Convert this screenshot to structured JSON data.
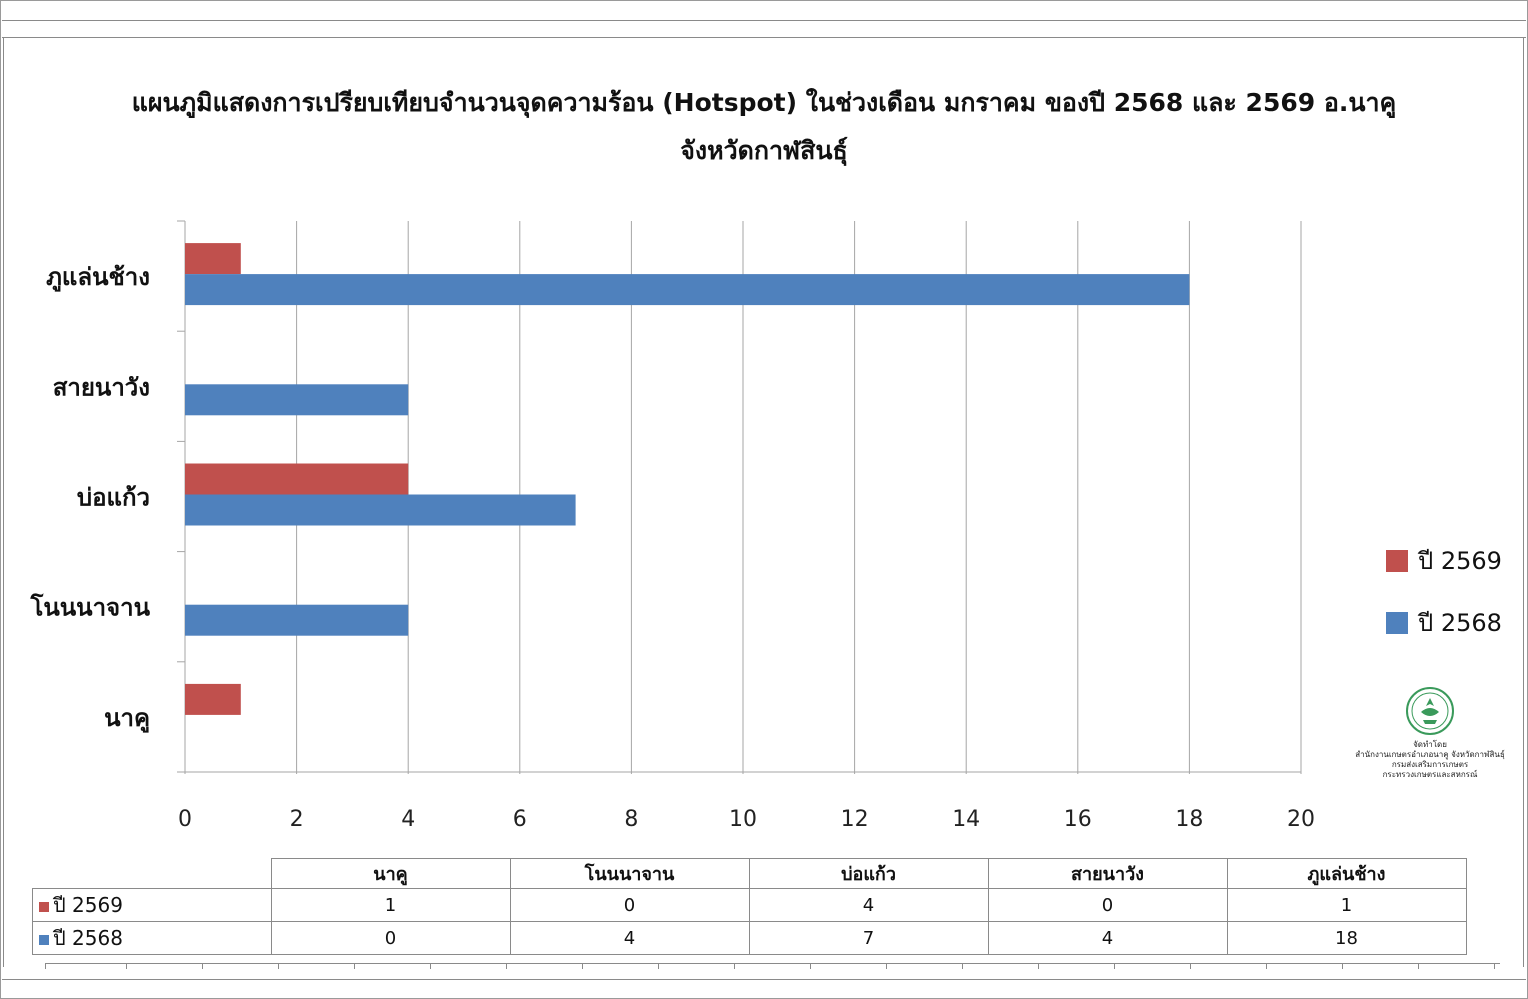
{
  "title_line1": "แผนภูมิแสดงการเปรียบเทียบจำนวนจุดความร้อน (Hotspot) ในช่วงเดือน มกราคม ของปี 2568 และ 2569 อ.นาคู",
  "title_line2": "จังหวัดกาฬสินธุ์",
  "colors": {
    "y2569": "#c0504d",
    "y2568": "#4f81bd",
    "grid": "#a6a6a6"
  },
  "chart_data": {
    "type": "bar",
    "orientation": "horizontal",
    "categories": [
      "นาคู",
      "โนนนาจาน",
      "บ่อแก้ว",
      "สายนาวัง",
      "ภูแล่นช้าง"
    ],
    "series": [
      {
        "name": "ปี 2569",
        "values": [
          1,
          0,
          4,
          0,
          1
        ]
      },
      {
        "name": "ปี 2568",
        "values": [
          0,
          4,
          7,
          4,
          18
        ]
      }
    ],
    "xlim": [
      0,
      20
    ],
    "xticks": [
      0,
      2,
      4,
      6,
      8,
      10,
      12,
      14,
      16,
      18,
      20
    ],
    "grid": true,
    "legend_position": "right"
  },
  "data_table": {
    "headers": [
      "นาคู",
      "โนนนาจาน",
      "บ่อแก้ว",
      "สายนาวัง",
      "ภูแล่นช้าง"
    ],
    "rows": [
      {
        "label": "ปี 2569",
        "values": [
          "1",
          "0",
          "4",
          "0",
          "1"
        ]
      },
      {
        "label": "ปี 2568",
        "values": [
          "0",
          "4",
          "7",
          "4",
          "18"
        ]
      }
    ]
  },
  "logo": {
    "icon": "agriculture-seal-icon",
    "line1": "จัดทำโดย",
    "line2": "สำนักงานเกษตรอำเภอนาคู จังหวัดกาฬสินธุ์",
    "line3": "กรมส่งเสริมการเกษตร",
    "line4": "กระทรวงเกษตรและสหกรณ์"
  }
}
